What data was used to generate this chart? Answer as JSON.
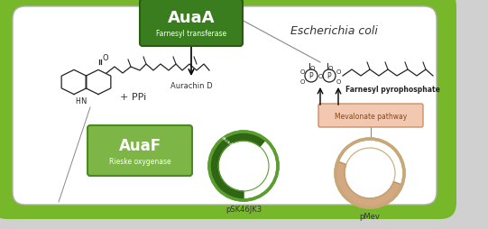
{
  "figure_bg": "#d0d0d0",
  "outer_color": "#76b82a",
  "inner_color": "#ffffff",
  "inner_edge": "#b0b0b0",
  "ecoli_label": "Escherichia coli",
  "auaa_label": "AuaA",
  "auaa_sublabel": "Farnesyl transferase",
  "auaa_bg": "#3a7d1e",
  "auaa_edge": "#2a5c10",
  "auaf_label": "AuaF",
  "auaf_sublabel": "Rieske oxygenase",
  "auaf_bg": "#7db547",
  "auaf_edge": "#4a8a20",
  "ppi_label": "+ PPi",
  "aurachin_label": "Aurachin D",
  "farnesyl_label": "Farnesyl pyrophosphate",
  "mev_label": "Mevalonate pathway",
  "mev_bg": "#f2c9b0",
  "mev_edge": "#c8906a",
  "psk_label": "pSK46JK3",
  "pmev_label": "pMev",
  "green_plasmid": "#5a9e30",
  "dark_green_insert": "#2e6614",
  "tan_plasmid": "#c8a878",
  "tan_insert": "#d4a880"
}
